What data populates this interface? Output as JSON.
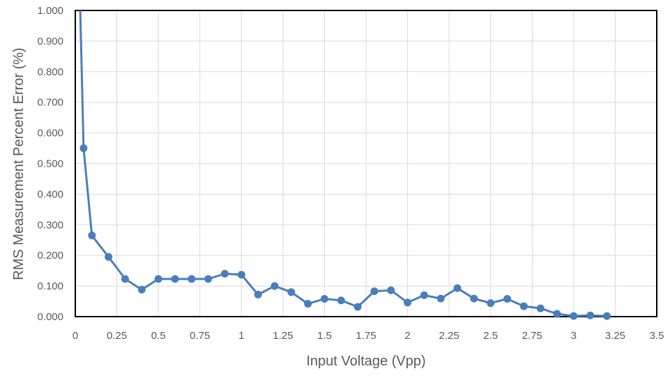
{
  "chart_data": {
    "type": "line",
    "xlabel": "Input Voltage (Vpp)",
    "ylabel": "RMS Measurement Percent Error (%)",
    "xlim": [
      0,
      3.5
    ],
    "ylim": [
      0,
      1.0
    ],
    "xticks": [
      0,
      0.25,
      0.5,
      0.75,
      1,
      1.25,
      1.5,
      1.75,
      2,
      2.25,
      2.5,
      2.75,
      3,
      3.25,
      3.5
    ],
    "xtick_labels": [
      "0",
      "0.25",
      "0.5",
      "0.75",
      "1",
      "1.25",
      "1.5",
      "1.75",
      "2",
      "2.25",
      "2.5",
      "2.75",
      "3",
      "3.25",
      "3.5"
    ],
    "yticks": [
      0,
      0.1,
      0.2,
      0.3,
      0.4,
      0.5,
      0.6,
      0.7,
      0.8,
      0.9,
      1.0
    ],
    "ytick_labels": [
      "0.000",
      "0.100",
      "0.200",
      "0.300",
      "0.400",
      "0.500",
      "0.600",
      "0.700",
      "0.800",
      "0.900",
      "1.000"
    ],
    "grid": true,
    "series_color": "#4a7ebb",
    "series": [
      {
        "line_only_start": {
          "x": 0.03,
          "y": 1.0
        },
        "x": [
          0.05,
          0.1,
          0.2,
          0.3,
          0.4,
          0.5,
          0.6,
          0.7,
          0.8,
          0.9,
          1.0,
          1.1,
          1.2,
          1.3,
          1.4,
          1.5,
          1.6,
          1.7,
          1.8,
          1.9,
          2.0,
          2.1,
          2.2,
          2.3,
          2.4,
          2.5,
          2.6,
          2.7,
          2.8,
          2.9,
          3.0,
          3.1,
          3.2
        ],
        "y": [
          0.55,
          0.265,
          0.195,
          0.123,
          0.088,
          0.123,
          0.123,
          0.123,
          0.123,
          0.14,
          0.137,
          0.072,
          0.1,
          0.08,
          0.042,
          0.058,
          0.053,
          0.032,
          0.083,
          0.086,
          0.046,
          0.07,
          0.059,
          0.093,
          0.059,
          0.044,
          0.058,
          0.034,
          0.027,
          0.009,
          0.002,
          0.004,
          0.002
        ]
      }
    ]
  }
}
